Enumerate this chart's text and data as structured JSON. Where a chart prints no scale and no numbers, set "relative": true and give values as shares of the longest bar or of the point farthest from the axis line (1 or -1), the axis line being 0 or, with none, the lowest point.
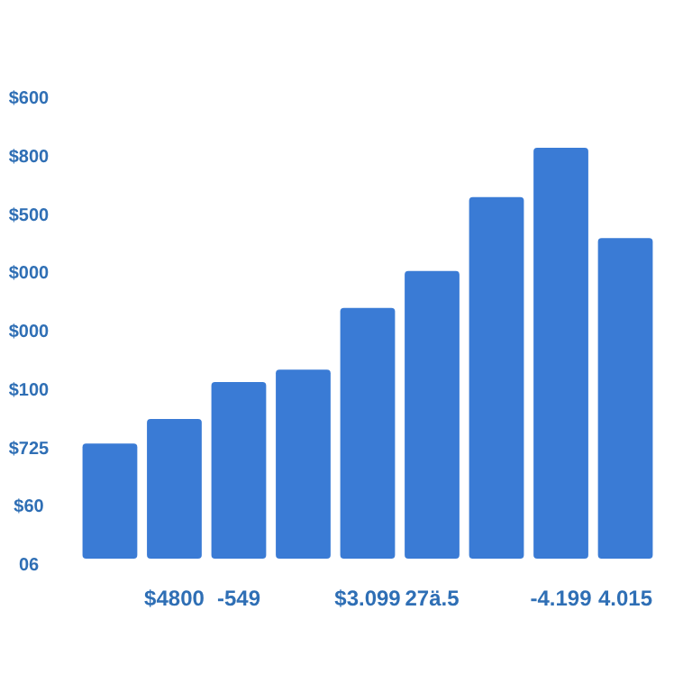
{
  "chart_data": {
    "type": "bar",
    "relative": true,
    "categories": [
      null,
      "$4800",
      "-549",
      null,
      "$3.099",
      "27ä.5",
      null,
      "-4.199",
      "4.015"
    ],
    "values": [
      0.28,
      0.34,
      0.43,
      0.46,
      0.61,
      0.7,
      0.88,
      1,
      0.78
    ],
    "color": "#3a7bd5",
    "annotations": [
      "$600",
      "$800",
      "$500",
      "$000",
      "$000",
      "$100",
      "$725",
      "$60",
      "06"
    ]
  }
}
